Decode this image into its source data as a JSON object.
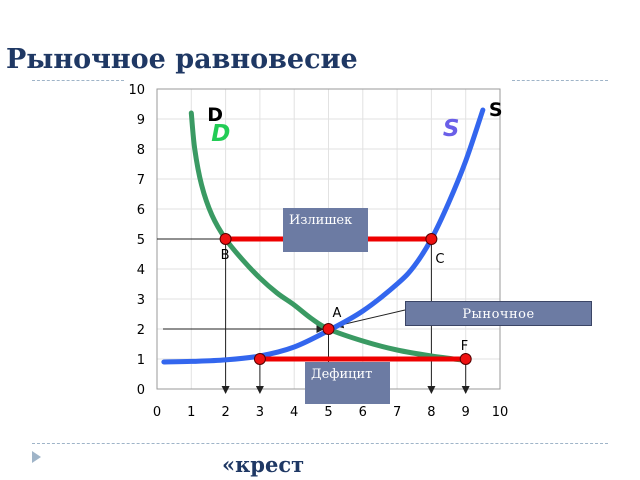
{
  "slide": {
    "title": "Рыночное равновесие",
    "footer_text": "«крест"
  },
  "boxes": {
    "surplus": "Излишек",
    "deficit": "Дефицит",
    "equilibrium": "Рыночное"
  },
  "chart_data": {
    "type": "line",
    "title": "",
    "xlabel": "",
    "ylabel": "",
    "xlim": [
      0,
      10
    ],
    "ylim": [
      0,
      10
    ],
    "x_ticks": [
      0,
      1,
      2,
      3,
      4,
      5,
      6,
      7,
      8,
      9,
      10
    ],
    "y_ticks": [
      0,
      1,
      2,
      3,
      4,
      5,
      6,
      7,
      8,
      9,
      10
    ],
    "grid": true,
    "series": [
      {
        "name": "D",
        "color": "#3a9a63",
        "label_color": "#22cc55",
        "x": [
          1.0,
          1.1,
          1.3,
          1.6,
          2.0,
          2.5,
          3.0,
          3.5,
          4.0,
          4.5,
          5.0,
          6.0,
          7.0,
          8.0,
          9.0
        ],
        "y": [
          9.2,
          8.0,
          6.8,
          5.8,
          5.0,
          4.3,
          3.7,
          3.2,
          2.8,
          2.35,
          2.0,
          1.6,
          1.3,
          1.1,
          0.95
        ]
      },
      {
        "name": "S",
        "color": "#3366ee",
        "label_color": "#6a5fe8",
        "x": [
          0.2,
          1.0,
          2.0,
          3.0,
          4.0,
          5.0,
          6.0,
          7.0,
          7.5,
          8.0,
          8.5,
          9.0,
          9.5
        ],
        "y": [
          0.9,
          0.92,
          0.97,
          1.1,
          1.4,
          1.95,
          2.6,
          3.5,
          4.1,
          5.0,
          6.2,
          7.6,
          9.3
        ]
      }
    ],
    "points": [
      {
        "label": "A",
        "x": 5,
        "y": 2
      },
      {
        "label": "B",
        "x": 2,
        "y": 5
      },
      {
        "label": "C",
        "x": 8,
        "y": 5
      },
      {
        "label": "F",
        "x": 9,
        "y": 1
      }
    ],
    "markers": [
      {
        "x": 2,
        "y": 5
      },
      {
        "x": 8,
        "y": 5
      },
      {
        "x": 5,
        "y": 2
      },
      {
        "x": 3,
        "y": 1
      },
      {
        "x": 9,
        "y": 1
      }
    ],
    "segments": [
      {
        "name": "surplus",
        "from": [
          2,
          5
        ],
        "to": [
          8,
          5
        ],
        "color": "#ee0000"
      },
      {
        "name": "deficit",
        "from": [
          3,
          1
        ],
        "to": [
          9,
          1
        ],
        "color": "#ee0000"
      }
    ]
  }
}
